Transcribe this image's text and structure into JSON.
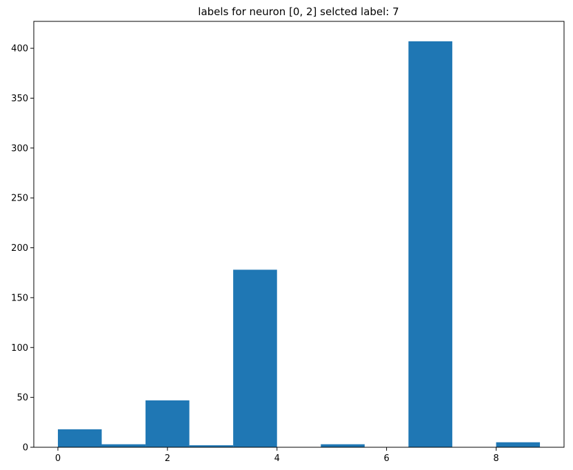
{
  "chart_data": {
    "type": "bar",
    "title": "labels for neuron [0, 2] selcted label: 7",
    "xlabel": "",
    "ylabel": "",
    "bins": [
      {
        "start": 0.0,
        "end": 0.8,
        "value": 18
      },
      {
        "start": 0.8,
        "end": 1.6,
        "value": 3
      },
      {
        "start": 1.6,
        "end": 2.4,
        "value": 47
      },
      {
        "start": 2.4,
        "end": 3.2,
        "value": 2
      },
      {
        "start": 3.2,
        "end": 4.0,
        "value": 178
      },
      {
        "start": 4.0,
        "end": 4.8,
        "value": 0
      },
      {
        "start": 4.8,
        "end": 5.6,
        "value": 3
      },
      {
        "start": 5.6,
        "end": 6.4,
        "value": 0
      },
      {
        "start": 6.4,
        "end": 7.2,
        "value": 407
      },
      {
        "start": 7.2,
        "end": 8.0,
        "value": 0
      },
      {
        "start": 8.0,
        "end": 8.8,
        "value": 5
      }
    ],
    "xlim": [
      -0.44,
      9.24
    ],
    "ylim": [
      0,
      427
    ],
    "xticks": [
      {
        "value": 0,
        "label": "0"
      },
      {
        "value": 2,
        "label": "2"
      },
      {
        "value": 4,
        "label": "4"
      },
      {
        "value": 6,
        "label": "6"
      },
      {
        "value": 8,
        "label": "8"
      }
    ],
    "yticks": [
      {
        "value": 0,
        "label": "0"
      },
      {
        "value": 50,
        "label": "50"
      },
      {
        "value": 100,
        "label": "100"
      },
      {
        "value": 150,
        "label": "150"
      },
      {
        "value": 200,
        "label": "200"
      },
      {
        "value": 250,
        "label": "250"
      },
      {
        "value": 300,
        "label": "300"
      },
      {
        "value": 350,
        "label": "350"
      },
      {
        "value": 400,
        "label": "400"
      }
    ],
    "bar_color": "#1f77b4",
    "grid": false
  }
}
